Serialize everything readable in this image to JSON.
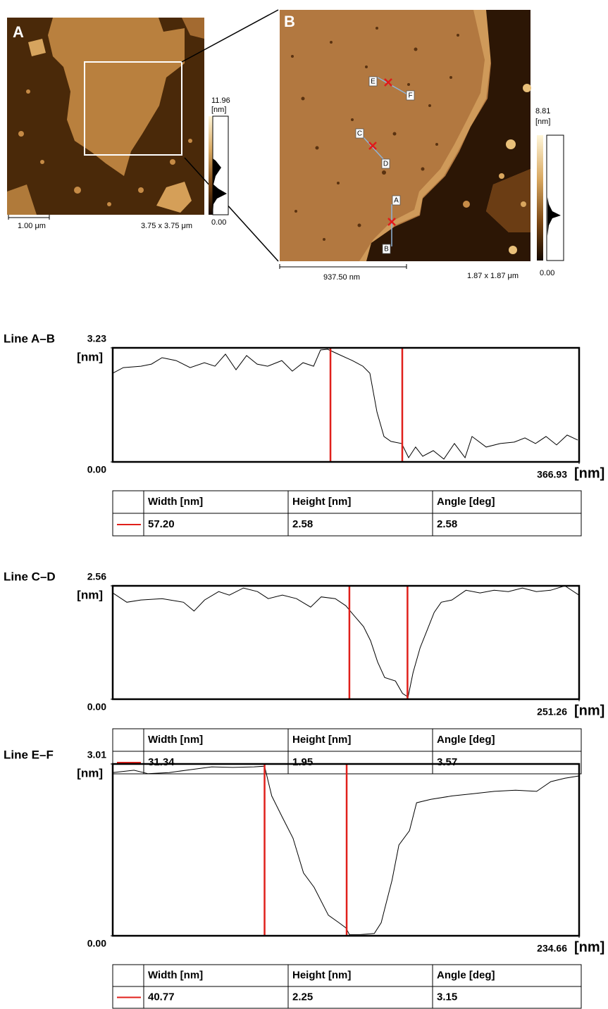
{
  "images": [
    {
      "label": "A",
      "scale_bar": "1.00 μm",
      "size": "3.75 x 3.75 μm",
      "colorbar_max": "11.96",
      "colorbar_unit": "[nm]",
      "colorbar_min": "0.00"
    },
    {
      "label": "B",
      "scale_bar": "937.50 nm",
      "size": "1.87 x 1.87 μm",
      "colorbar_max": "8.81",
      "colorbar_unit": "[nm]",
      "colorbar_min": "0.00",
      "markers": [
        "A",
        "B",
        "C",
        "D",
        "E",
        "F"
      ]
    }
  ],
  "chart_data": [
    {
      "type": "line",
      "title": "Line A–B",
      "y_label": "[nm]",
      "x_label": "[nm]",
      "x": [
        0,
        8.3,
        22.2,
        30.5,
        38.8,
        49.9,
        60.9,
        72.1,
        80.4,
        88.7,
        97.0,
        105.3,
        113.6,
        121.9,
        133.0,
        141.3,
        149.7,
        158.0,
        163.5,
        169.1,
        177.4,
        188.5,
        196.8,
        202.3,
        207.9,
        213.4,
        218.9,
        227.3,
        232.8,
        238.3,
        243.9,
        252.2,
        260.5,
        268.8,
        277.2,
        282.7,
        293.8,
        304.9,
        315.9,
        324.3,
        332.6,
        340.9,
        349.2,
        357.5,
        365.8
      ],
      "series": [
        {
          "color": "#000000",
          "values": [
            2.51,
            2.67,
            2.71,
            2.77,
            2.95,
            2.87,
            2.67,
            2.81,
            2.71,
            3.05,
            2.61,
            3.01,
            2.77,
            2.71,
            2.87,
            2.57,
            2.81,
            2.71,
            3.17,
            3.19,
            3.05,
            2.87,
            2.71,
            2.51,
            1.41,
            0.72,
            0.58,
            0.52,
            0.12,
            0.42,
            0.16,
            0.32,
            0.08,
            0.52,
            0.12,
            0.72,
            0.42,
            0.52,
            0.56,
            0.68,
            0.52,
            0.72,
            0.48,
            0.76,
            0.62
          ]
        }
      ],
      "cursors": {
        "color": "#e0201b",
        "x": [
          171.3,
          227.8
        ]
      },
      "xlim": [
        0,
        366.93
      ],
      "xticks": [
        366.93
      ],
      "ylim": [
        0,
        3.23
      ],
      "yticks": [
        {
          "value": 0,
          "label": "0.00"
        },
        3.23
      ],
      "table": {
        "header": [
          "Width [nm]",
          "Height [nm]",
          "Angle [deg]"
        ],
        "row": [
          "57.20",
          "2.58",
          "2.58"
        ]
      }
    },
    {
      "type": "line",
      "title": "Line C–D",
      "y_label": "[nm]",
      "x_label": "[nm]",
      "x": [
        0,
        7.6,
        15.2,
        26.6,
        38.1,
        43.8,
        49.5,
        57.1,
        62.8,
        70.4,
        78.0,
        83.8,
        91.4,
        99.0,
        106.6,
        112.3,
        119.9,
        125.6,
        129.4,
        135.1,
        138.9,
        142.7,
        146.5,
        152.3,
        156.1,
        159.1,
        161.8,
        165.6,
        169.4,
        173.2,
        177.0,
        182.7,
        190.3,
        197.9,
        205.5,
        213.1,
        220.7,
        228.3,
        235.9,
        243.6,
        251.2
      ],
      "series": [
        {
          "color": "#000000",
          "values": [
            2.4,
            2.19,
            2.24,
            2.27,
            2.19,
            1.99,
            2.24,
            2.43,
            2.35,
            2.51,
            2.43,
            2.27,
            2.35,
            2.27,
            2.08,
            2.31,
            2.27,
            2.11,
            1.92,
            1.64,
            1.32,
            0.84,
            0.49,
            0.41,
            0.13,
            0.05,
            0.6,
            1.16,
            1.56,
            1.96,
            2.19,
            2.24,
            2.46,
            2.4,
            2.46,
            2.43,
            2.51,
            2.43,
            2.46,
            2.56,
            2.35
          ]
        }
      ],
      "cursors": {
        "color": "#e0201b",
        "x": [
          127.5,
          158.8
        ]
      },
      "xlim": [
        0,
        251.26
      ],
      "xticks": [
        251.26
      ],
      "ylim": [
        0,
        2.56
      ],
      "yticks": [
        {
          "value": 0,
          "label": "0.00"
        },
        2.56
      ],
      "table": {
        "header": [
          "Width [nm]",
          "Height [nm]",
          "Angle [deg]"
        ],
        "row": [
          "31.34",
          "1.95",
          "3.57"
        ]
      }
    },
    {
      "type": "line",
      "title": "Line E–F",
      "y_label": "[nm]",
      "x_label": "[nm]",
      "x": [
        0,
        10.7,
        17.8,
        28.4,
        39.1,
        49.8,
        60.4,
        71.1,
        76.4,
        80.0,
        85.3,
        90.7,
        96.0,
        101.3,
        108.5,
        113.8,
        117.3,
        119.1,
        124.5,
        131.6,
        135.1,
        136.9,
        140.5,
        144.0,
        149.3,
        152.9,
        160.0,
        170.7,
        181.3,
        192.0,
        202.7,
        213.3,
        220.4,
        227.5,
        234.6
      ],
      "series": [
        {
          "color": "#000000",
          "values": [
            2.86,
            2.9,
            2.84,
            2.86,
            2.91,
            2.96,
            2.95,
            2.96,
            2.97,
            2.45,
            2.08,
            1.71,
            1.1,
            0.85,
            0.36,
            0.23,
            0.14,
            0.02,
            0.02,
            0.04,
            0.23,
            0.48,
            0.97,
            1.59,
            1.84,
            2.33,
            2.39,
            2.45,
            2.49,
            2.53,
            2.55,
            2.53,
            2.7,
            2.76,
            2.8
          ]
        }
      ],
      "cursors": {
        "color": "#e0201b",
        "x": [
          76.4,
          117.7
        ]
      },
      "xlim": [
        0,
        234.66
      ],
      "xticks": [
        234.66
      ],
      "ylim": [
        0,
        3.01
      ],
      "yticks": [
        {
          "value": 0,
          "label": "0.00"
        },
        3.01
      ],
      "table": {
        "header": [
          "Width [nm]",
          "Height [nm]",
          "Angle [deg]"
        ],
        "row": [
          "40.77",
          "2.25",
          "3.15"
        ]
      }
    }
  ]
}
